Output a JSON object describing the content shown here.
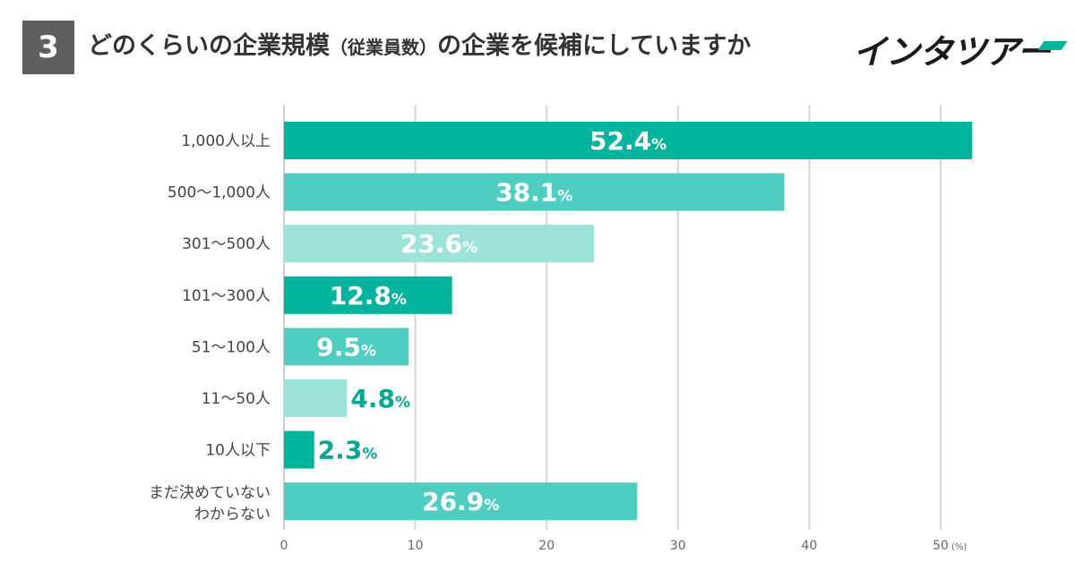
{
  "header": {
    "number": "3",
    "title_main": "どのくらいの企業規模",
    "title_paren": "（従業員数）",
    "title_tail": "の企業を候補にしていますか",
    "logo_text": "インタツアー"
  },
  "colors": {
    "dark": "#00b39c",
    "medium": "#4ecdc0",
    "light": "#9ee3da",
    "grid": "#d6d6d6",
    "label_outside": "#00a893"
  },
  "chart_data": {
    "type": "bar",
    "orientation": "horizontal",
    "categories": [
      [
        "1,000人以上"
      ],
      [
        "500〜1,000人"
      ],
      [
        "301〜500人"
      ],
      [
        "101〜300人"
      ],
      [
        "51〜100人"
      ],
      [
        "11〜50人"
      ],
      [
        "10人以下"
      ],
      [
        "まだ決めていない",
        "わからない"
      ]
    ],
    "values": [
      52.4,
      38.1,
      23.6,
      12.8,
      9.5,
      4.8,
      2.3,
      26.9
    ],
    "value_labels": [
      "52.4",
      "38.1",
      "23.6",
      "12.8",
      "9.5",
      "4.8",
      "2.3",
      "26.9"
    ],
    "value_suffix": "%",
    "bar_colors": [
      "dark",
      "medium",
      "light",
      "dark",
      "medium",
      "light",
      "dark",
      "medium"
    ],
    "label_inside": [
      true,
      true,
      true,
      true,
      true,
      false,
      false,
      true
    ],
    "xlim": [
      0,
      50
    ],
    "xticks": [
      "0",
      "10",
      "20",
      "30",
      "40",
      "50"
    ],
    "xunit": "(%)",
    "grid": true
  }
}
